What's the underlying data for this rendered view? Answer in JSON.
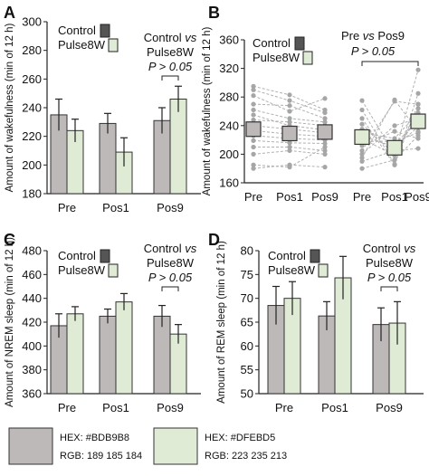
{
  "colors": {
    "control": "#BDB9B8",
    "pulse": "#DFEBD5",
    "stroke": "#333333",
    "dot": "#a6a6a6"
  },
  "legend_labels": {
    "control": "Control",
    "pulse": "Pulse8W"
  },
  "chart_data": [
    {
      "panel": "A",
      "type": "bar",
      "ylabel": "Amount of wakefulness (min of 12 h)",
      "ylim": [
        180,
        300
      ],
      "yticks": [
        180,
        200,
        220,
        240,
        260,
        280,
        300
      ],
      "categories": [
        "Pre",
        "Pos1",
        "Pos9"
      ],
      "series": [
        {
          "name": "Control",
          "values": [
            235,
            229,
            231
          ],
          "errors": [
            11,
            7,
            9
          ]
        },
        {
          "name": "Pulse8W",
          "values": [
            224,
            209,
            246
          ],
          "errors": [
            8,
            10,
            9
          ]
        }
      ],
      "annotation": {
        "line1": "Control ",
        "vs": "vs",
        "line2": "Pulse8W",
        "pvalue": "P > 0.05",
        "category": 2
      }
    },
    {
      "panel": "B",
      "type": "scatter",
      "ylabel": "Amount of wakefulness (min of 12 h)",
      "ylim": [
        160,
        360
      ],
      "yticks": [
        160,
        200,
        240,
        280,
        320,
        360
      ],
      "categories": [
        "Pre",
        "Pos1",
        "Pos9",
        "Pre",
        "Pos1",
        "Pos9"
      ],
      "groups": [
        {
          "name": "Control",
          "means": [
            235,
            229,
            231
          ],
          "subjects": [
            [
              295,
              283,
              262
            ],
            [
              290,
              275,
              258
            ],
            [
              282,
              260,
              278
            ],
            [
              270,
              268,
              250
            ],
            [
              262,
              250,
              245
            ],
            [
              255,
              240,
              234
            ],
            [
              248,
              245,
              240
            ],
            [
              240,
              235,
              230
            ],
            [
              233,
              228,
              225
            ],
            [
              226,
              222,
              220
            ],
            [
              219,
              216,
              215
            ],
            [
              210,
              210,
              205
            ],
            [
              200,
              205,
              200
            ],
            [
              185,
              182,
              210
            ],
            [
              180,
              185,
              182
            ]
          ]
        },
        {
          "name": "Pulse8W",
          "means": [
            224,
            209,
            246
          ],
          "subjects": [
            [
              275,
              200,
              255
            ],
            [
              262,
              186,
              270
            ],
            [
              250,
              185,
              285
            ],
            [
              242,
              200,
              318
            ],
            [
              235,
              215,
              245
            ],
            [
              230,
              222,
              258
            ],
            [
              226,
              210,
              238
            ],
            [
              222,
              198,
              264
            ],
            [
              218,
              218,
              230
            ],
            [
              212,
              232,
              222
            ],
            [
              205,
              274,
              270
            ],
            [
              200,
              240,
              250
            ],
            [
              195,
              276,
              232
            ],
            [
              190,
              205,
              208
            ],
            [
              180,
              192,
              226
            ]
          ]
        }
      ],
      "annotation": {
        "line1": "Pre ",
        "vs": "vs",
        "line2": " Pos9",
        "pvalue": "P > 0.05"
      }
    },
    {
      "panel": "C",
      "type": "bar",
      "ylabel": "Amount of NREM sleep (min of 12 h)",
      "ylim": [
        360,
        480
      ],
      "yticks": [
        360,
        380,
        400,
        420,
        440,
        460,
        480
      ],
      "categories": [
        "Pre",
        "Pos1",
        "Pos9"
      ],
      "series": [
        {
          "name": "Control",
          "values": [
            417,
            425,
            425
          ],
          "errors": [
            10,
            6,
            9
          ]
        },
        {
          "name": "Pulse8W",
          "values": [
            427,
            437,
            410
          ],
          "errors": [
            6,
            7,
            8
          ]
        }
      ],
      "annotation": {
        "line1": "Control ",
        "vs": "vs",
        "line2": "Pulse8W",
        "pvalue": "P > 0.05",
        "category": 2
      }
    },
    {
      "panel": "D",
      "type": "bar",
      "ylabel": "Amount of REM sleep (min of 12 h)",
      "ylim": [
        50,
        80
      ],
      "yticks": [
        50,
        55,
        60,
        65,
        70,
        75,
        80
      ],
      "categories": [
        "Pre",
        "Pos1",
        "Pos9"
      ],
      "series": [
        {
          "name": "Control",
          "values": [
            68.5,
            66.3,
            64.5
          ],
          "errors": [
            4.0,
            3.0,
            3.5
          ]
        },
        {
          "name": "Pulse8W",
          "values": [
            70.0,
            74.3,
            64.8
          ],
          "errors": [
            3.5,
            4.5,
            4.5
          ]
        }
      ],
      "annotation": {
        "line1": "Control ",
        "vs": "vs",
        "line2": "Pulse8W",
        "pvalue": "P > 0.05",
        "category": 2
      }
    }
  ],
  "swatches": [
    {
      "hex": "HEX: #BDB9B8",
      "rgb": "RGB: 189 185 184",
      "color": "#BDB9B8"
    },
    {
      "hex": "HEX: #DFEBD5",
      "rgb": "RGB: 223 235 213",
      "color": "#DFEBD5"
    }
  ]
}
